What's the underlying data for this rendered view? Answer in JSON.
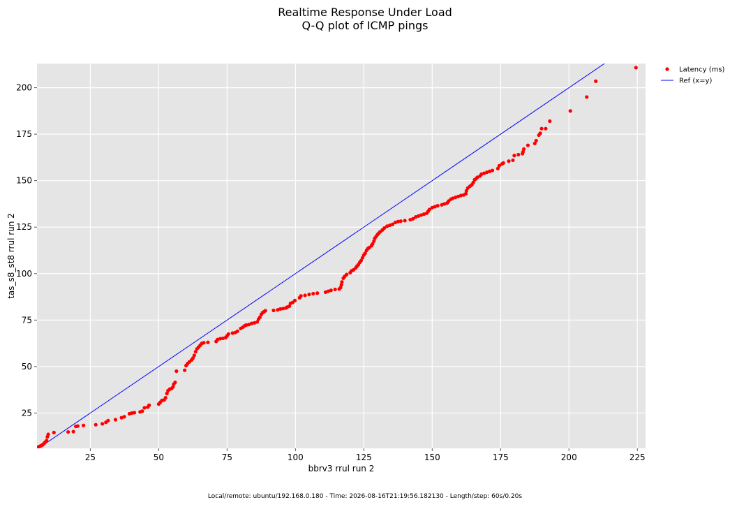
{
  "chart_data": {
    "type": "scatter",
    "title": "Realtime Response Under Load",
    "subtitle": "Q-Q plot of ICMP pings",
    "xlabel": "bbrv3 rrul run 2",
    "ylabel": "tas_s8_st8 rrul run 2",
    "xlim": [
      5.5,
      228
    ],
    "ylim": [
      6,
      213
    ],
    "x_ticks": [
      25,
      50,
      75,
      100,
      125,
      150,
      175,
      200,
      225
    ],
    "y_ticks": [
      25,
      50,
      75,
      100,
      125,
      150,
      175,
      200
    ],
    "grid": true,
    "legend_position": "outside-top-right",
    "series": [
      {
        "name": "Latency (ms)",
        "kind": "scatter",
        "color": "#ff0000",
        "points": [
          [
            5.8,
            6.5
          ],
          [
            6.1,
            6.8
          ],
          [
            6.4,
            7.0
          ],
          [
            6.8,
            7.3
          ],
          [
            7.2,
            7.6
          ],
          [
            7.6,
            8.0
          ],
          [
            8.0,
            8.5
          ],
          [
            8.3,
            9.0
          ],
          [
            8.7,
            9.6
          ],
          [
            9.0,
            10.2
          ],
          [
            9.3,
            12.2
          ],
          [
            9.6,
            13.5
          ],
          [
            11.7,
            14.5
          ],
          [
            16.9,
            14.8
          ],
          [
            18.8,
            15.0
          ],
          [
            19.7,
            17.8
          ],
          [
            20.4,
            18.0
          ],
          [
            22.5,
            18.3
          ],
          [
            27.0,
            18.7
          ],
          [
            29.4,
            19.2
          ],
          [
            30.7,
            20.0
          ],
          [
            31.5,
            20.9
          ],
          [
            34.2,
            21.4
          ],
          [
            36.4,
            22.5
          ],
          [
            37.4,
            23.0
          ],
          [
            39.3,
            24.6
          ],
          [
            40.2,
            25.0
          ],
          [
            41.1,
            25.2
          ],
          [
            43.2,
            25.6
          ],
          [
            44.0,
            26.0
          ],
          [
            44.8,
            27.8
          ],
          [
            46.0,
            28.2
          ],
          [
            46.5,
            29.2
          ],
          [
            50.0,
            29.8
          ],
          [
            50.6,
            30.8
          ],
          [
            51.2,
            31.8
          ],
          [
            52.0,
            32.0
          ],
          [
            52.5,
            33.2
          ],
          [
            53.0,
            35.5
          ],
          [
            53.4,
            37.0
          ],
          [
            54.0,
            37.8
          ],
          [
            54.7,
            38.2
          ],
          [
            55.2,
            39.0
          ],
          [
            55.5,
            40.5
          ],
          [
            56.0,
            41.5
          ],
          [
            56.5,
            47.5
          ],
          [
            59.5,
            48.0
          ],
          [
            60.0,
            50.5
          ],
          [
            60.5,
            51.5
          ],
          [
            61.2,
            52.5
          ],
          [
            62.0,
            53.5
          ],
          [
            62.5,
            54.5
          ],
          [
            63.0,
            56.0
          ],
          [
            63.5,
            58.0
          ],
          [
            64.0,
            59.5
          ],
          [
            64.6,
            60.5
          ],
          [
            65.2,
            61.5
          ],
          [
            65.8,
            62.5
          ],
          [
            66.5,
            62.8
          ],
          [
            68.0,
            63.0
          ],
          [
            71.0,
            63.5
          ],
          [
            71.5,
            64.5
          ],
          [
            72.5,
            65.0
          ],
          [
            73.5,
            65.2
          ],
          [
            74.5,
            65.6
          ],
          [
            75.0,
            66.5
          ],
          [
            75.5,
            67.5
          ],
          [
            77.0,
            68.0
          ],
          [
            78.0,
            68.3
          ],
          [
            78.8,
            69.0
          ],
          [
            80.0,
            70.5
          ],
          [
            80.8,
            71.2
          ],
          [
            81.5,
            72.0
          ],
          [
            82.0,
            72.3
          ],
          [
            83.0,
            72.6
          ],
          [
            84.0,
            73.2
          ],
          [
            85.0,
            73.5
          ],
          [
            86.0,
            74.0
          ],
          [
            86.5,
            75.5
          ],
          [
            87.0,
            76.5
          ],
          [
            87.5,
            78.0
          ],
          [
            88.0,
            79.0
          ],
          [
            88.5,
            79.5
          ],
          [
            89.0,
            80.0
          ],
          [
            92.0,
            80.2
          ],
          [
            93.5,
            80.5
          ],
          [
            94.5,
            81.0
          ],
          [
            95.5,
            81.2
          ],
          [
            96.5,
            81.5
          ],
          [
            97.0,
            82.0
          ],
          [
            97.8,
            82.5
          ],
          [
            98.2,
            84.0
          ],
          [
            99.0,
            84.5
          ],
          [
            99.8,
            85.5
          ],
          [
            101.5,
            87.0
          ],
          [
            102.0,
            88.0
          ],
          [
            103.5,
            88.3
          ],
          [
            105.0,
            88.8
          ],
          [
            106.5,
            89.2
          ],
          [
            108.0,
            89.5
          ],
          [
            111.0,
            90.0
          ],
          [
            112.0,
            90.5
          ],
          [
            113.0,
            91.0
          ],
          [
            114.5,
            91.5
          ],
          [
            116.0,
            91.7
          ],
          [
            116.5,
            92.5
          ],
          [
            116.8,
            94.0
          ],
          [
            117.0,
            95.5
          ],
          [
            117.5,
            97.5
          ],
          [
            118.0,
            98.5
          ],
          [
            118.7,
            99.5
          ],
          [
            120.0,
            100.5
          ],
          [
            120.5,
            101.5
          ],
          [
            121.2,
            102.0
          ],
          [
            122.0,
            103.0
          ],
          [
            122.5,
            104.0
          ],
          [
            123.0,
            104.8
          ],
          [
            123.5,
            106.0
          ],
          [
            124.0,
            107.0
          ],
          [
            124.5,
            108.5
          ],
          [
            125.0,
            110.0
          ],
          [
            125.5,
            111.0
          ],
          [
            126.0,
            112.5
          ],
          [
            126.5,
            113.5
          ],
          [
            127.0,
            114.0
          ],
          [
            127.8,
            115.0
          ],
          [
            128.2,
            116.0
          ],
          [
            128.7,
            117.5
          ],
          [
            129.0,
            119.0
          ],
          [
            129.5,
            120.0
          ],
          [
            130.0,
            121.0
          ],
          [
            130.5,
            121.8
          ],
          [
            131.0,
            122.5
          ],
          [
            131.8,
            123.5
          ],
          [
            132.5,
            124.5
          ],
          [
            133.5,
            125.5
          ],
          [
            134.5,
            126.0
          ],
          [
            135.5,
            126.5
          ],
          [
            136.5,
            127.5
          ],
          [
            137.5,
            128.0
          ],
          [
            138.5,
            128.2
          ],
          [
            140.0,
            128.5
          ],
          [
            142.0,
            129.0
          ],
          [
            143.0,
            129.5
          ],
          [
            144.0,
            130.5
          ],
          [
            145.0,
            131.0
          ],
          [
            146.0,
            131.5
          ],
          [
            147.0,
            132.0
          ],
          [
            148.0,
            132.5
          ],
          [
            148.5,
            133.5
          ],
          [
            149.0,
            134.5
          ],
          [
            150.0,
            135.5
          ],
          [
            151.0,
            136.0
          ],
          [
            152.0,
            136.5
          ],
          [
            153.5,
            137.0
          ],
          [
            154.5,
            137.5
          ],
          [
            155.5,
            138.0
          ],
          [
            156.0,
            139.0
          ],
          [
            156.8,
            140.0
          ],
          [
            157.5,
            140.5
          ],
          [
            158.5,
            141.0
          ],
          [
            159.5,
            141.5
          ],
          [
            160.5,
            142.0
          ],
          [
            161.5,
            142.3
          ],
          [
            162.3,
            143.0
          ],
          [
            162.5,
            144.5
          ],
          [
            163.0,
            146.0
          ],
          [
            163.8,
            147.0
          ],
          [
            164.5,
            147.8
          ],
          [
            165.0,
            149.0
          ],
          [
            165.5,
            150.5
          ],
          [
            166.0,
            151.0
          ],
          [
            166.5,
            151.8
          ],
          [
            167.5,
            152.5
          ],
          [
            168.0,
            153.5
          ],
          [
            169.0,
            154.0
          ],
          [
            170.0,
            154.5
          ],
          [
            171.0,
            155.0
          ],
          [
            172.0,
            155.5
          ],
          [
            174.0,
            156.5
          ],
          [
            174.5,
            158.0
          ],
          [
            175.5,
            159.0
          ],
          [
            176.0,
            159.5
          ],
          [
            178.0,
            160.5
          ],
          [
            179.5,
            161.0
          ],
          [
            180.0,
            163.5
          ],
          [
            181.5,
            164.0
          ],
          [
            183.0,
            164.5
          ],
          [
            183.2,
            165.5
          ],
          [
            183.5,
            167.0
          ],
          [
            185.0,
            169.0
          ],
          [
            187.5,
            170.0
          ],
          [
            188.0,
            171.5
          ],
          [
            189.0,
            174.5
          ],
          [
            189.5,
            175.5
          ],
          [
            190.0,
            178.0
          ],
          [
            191.5,
            178.0
          ],
          [
            193.0,
            182.0
          ],
          [
            200.5,
            187.5
          ],
          [
            206.5,
            195.0
          ],
          [
            209.8,
            203.5
          ],
          [
            224.5,
            210.8
          ]
        ]
      },
      {
        "name": "Ref (x=y)",
        "kind": "line",
        "color": "#0000ff",
        "points": [
          [
            6,
            6
          ],
          [
            213,
            213
          ]
        ]
      }
    ]
  },
  "footer": {
    "text": "Local/remote: ubuntu/192.168.0.180 - Time: 2026-08-16T21:19:56.182130 - Length/step: 60s/0.20s"
  }
}
